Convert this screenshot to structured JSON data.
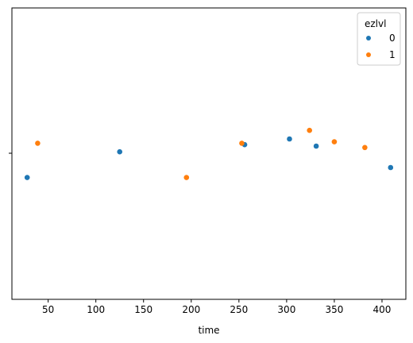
{
  "chart_data": {
    "type": "scatter",
    "xlabel": "time",
    "ylabel": "",
    "xlim": [
      12,
      425
    ],
    "x_ticks": [
      "50",
      "100",
      "150",
      "200",
      "250",
      "300",
      "350",
      "400"
    ],
    "x_tick_values": [
      50,
      100,
      150,
      200,
      250,
      300,
      350,
      400
    ],
    "y_category_ticks": [
      ""
    ],
    "grid": false,
    "legend": {
      "title": "ezlvl",
      "placement": "top-right",
      "entries": [
        "0",
        "1"
      ]
    },
    "series": [
      {
        "name": "0",
        "color": "#1f77b4",
        "points": [
          {
            "x": 28,
            "jitter": -0.17
          },
          {
            "x": 125,
            "jitter": 0.01
          },
          {
            "x": 256,
            "jitter": 0.06
          },
          {
            "x": 303,
            "jitter": 0.1
          },
          {
            "x": 331,
            "jitter": 0.05
          },
          {
            "x": 409,
            "jitter": -0.1
          }
        ]
      },
      {
        "name": "1",
        "color": "#ff7f0e",
        "points": [
          {
            "x": 39,
            "jitter": 0.07
          },
          {
            "x": 195,
            "jitter": -0.17
          },
          {
            "x": 253,
            "jitter": 0.07
          },
          {
            "x": 324,
            "jitter": 0.16
          },
          {
            "x": 350,
            "jitter": 0.08
          },
          {
            "x": 382,
            "jitter": 0.04
          }
        ]
      }
    ]
  }
}
